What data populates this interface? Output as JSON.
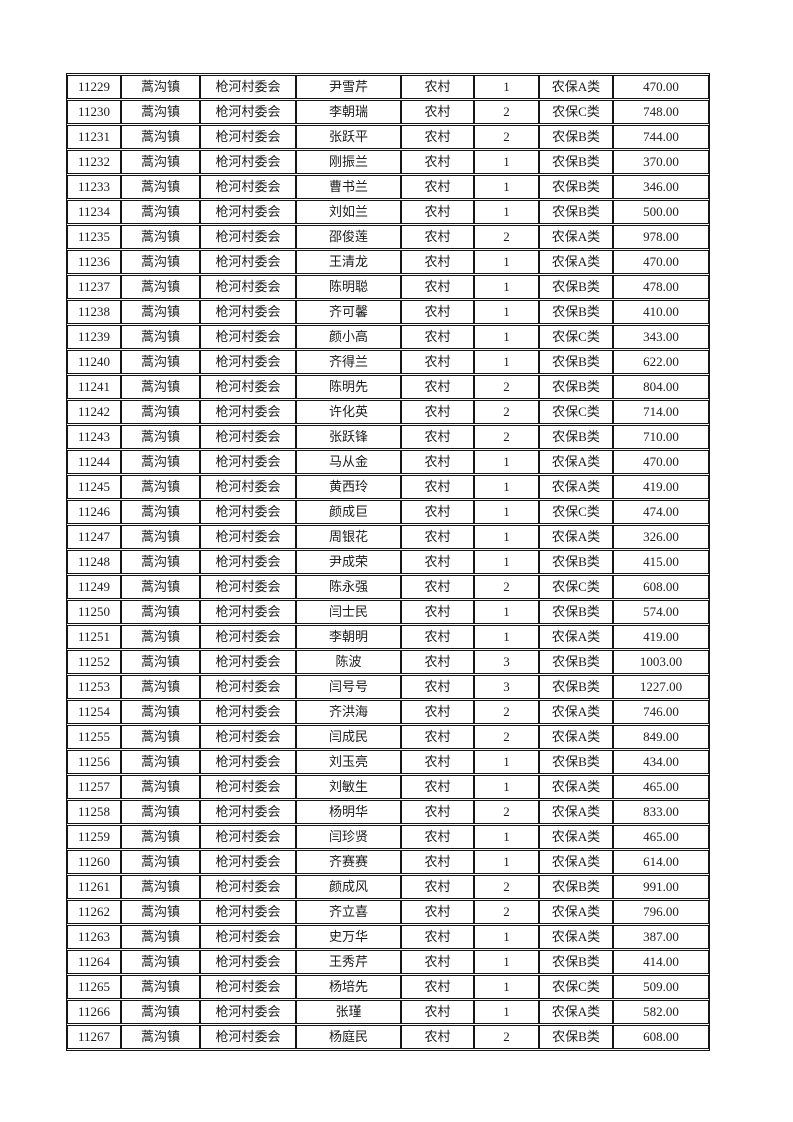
{
  "document": {
    "styles": {
      "page_background": "#ffffff",
      "border_color": "#161616",
      "text_color": "#1c1c1c"
    },
    "table": {
      "rows": [
        [
          "11229",
          "蒿沟镇",
          "枪河村委会",
          "尹雪芹",
          "农村",
          "1",
          "农保A类",
          "470.00"
        ],
        [
          "11230",
          "蒿沟镇",
          "枪河村委会",
          "李朝瑞",
          "农村",
          "2",
          "农保C类",
          "748.00"
        ],
        [
          "11231",
          "蒿沟镇",
          "枪河村委会",
          "张跃平",
          "农村",
          "2",
          "农保B类",
          "744.00"
        ],
        [
          "11232",
          "蒿沟镇",
          "枪河村委会",
          "刚振兰",
          "农村",
          "1",
          "农保B类",
          "370.00"
        ],
        [
          "11233",
          "蒿沟镇",
          "枪河村委会",
          "曹书兰",
          "农村",
          "1",
          "农保B类",
          "346.00"
        ],
        [
          "11234",
          "蒿沟镇",
          "枪河村委会",
          "刘如兰",
          "农村",
          "1",
          "农保B类",
          "500.00"
        ],
        [
          "11235",
          "蒿沟镇",
          "枪河村委会",
          "邵俊莲",
          "农村",
          "2",
          "农保A类",
          "978.00"
        ],
        [
          "11236",
          "蒿沟镇",
          "枪河村委会",
          "王清龙",
          "农村",
          "1",
          "农保A类",
          "470.00"
        ],
        [
          "11237",
          "蒿沟镇",
          "枪河村委会",
          "陈明聪",
          "农村",
          "1",
          "农保B类",
          "478.00"
        ],
        [
          "11238",
          "蒿沟镇",
          "枪河村委会",
          "齐可馨",
          "农村",
          "1",
          "农保B类",
          "410.00"
        ],
        [
          "11239",
          "蒿沟镇",
          "枪河村委会",
          "颜小高",
          "农村",
          "1",
          "农保C类",
          "343.00"
        ],
        [
          "11240",
          "蒿沟镇",
          "枪河村委会",
          "齐得兰",
          "农村",
          "1",
          "农保B类",
          "622.00"
        ],
        [
          "11241",
          "蒿沟镇",
          "枪河村委会",
          "陈明先",
          "农村",
          "2",
          "农保B类",
          "804.00"
        ],
        [
          "11242",
          "蒿沟镇",
          "枪河村委会",
          "许化英",
          "农村",
          "2",
          "农保C类",
          "714.00"
        ],
        [
          "11243",
          "蒿沟镇",
          "枪河村委会",
          "张跃锋",
          "农村",
          "2",
          "农保B类",
          "710.00"
        ],
        [
          "11244",
          "蒿沟镇",
          "枪河村委会",
          "马从金",
          "农村",
          "1",
          "农保A类",
          "470.00"
        ],
        [
          "11245",
          "蒿沟镇",
          "枪河村委会",
          "黄西玲",
          "农村",
          "1",
          "农保A类",
          "419.00"
        ],
        [
          "11246",
          "蒿沟镇",
          "枪河村委会",
          "颜成巨",
          "农村",
          "1",
          "农保C类",
          "474.00"
        ],
        [
          "11247",
          "蒿沟镇",
          "枪河村委会",
          "周银花",
          "农村",
          "1",
          "农保A类",
          "326.00"
        ],
        [
          "11248",
          "蒿沟镇",
          "枪河村委会",
          "尹成荣",
          "农村",
          "1",
          "农保B类",
          "415.00"
        ],
        [
          "11249",
          "蒿沟镇",
          "枪河村委会",
          "陈永强",
          "农村",
          "2",
          "农保C类",
          "608.00"
        ],
        [
          "11250",
          "蒿沟镇",
          "枪河村委会",
          "闫士民",
          "农村",
          "1",
          "农保B类",
          "574.00"
        ],
        [
          "11251",
          "蒿沟镇",
          "枪河村委会",
          "李朝明",
          "农村",
          "1",
          "农保A类",
          "419.00"
        ],
        [
          "11252",
          "蒿沟镇",
          "枪河村委会",
          "陈波",
          "农村",
          "3",
          "农保B类",
          "1003.00"
        ],
        [
          "11253",
          "蒿沟镇",
          "枪河村委会",
          "闫号号",
          "农村",
          "3",
          "农保B类",
          "1227.00"
        ],
        [
          "11254",
          "蒿沟镇",
          "枪河村委会",
          "齐洪海",
          "农村",
          "2",
          "农保A类",
          "746.00"
        ],
        [
          "11255",
          "蒿沟镇",
          "枪河村委会",
          "闫成民",
          "农村",
          "2",
          "农保A类",
          "849.00"
        ],
        [
          "11256",
          "蒿沟镇",
          "枪河村委会",
          "刘玉亮",
          "农村",
          "1",
          "农保B类",
          "434.00"
        ],
        [
          "11257",
          "蒿沟镇",
          "枪河村委会",
          "刘敏生",
          "农村",
          "1",
          "农保A类",
          "465.00"
        ],
        [
          "11258",
          "蒿沟镇",
          "枪河村委会",
          "杨明华",
          "农村",
          "2",
          "农保A类",
          "833.00"
        ],
        [
          "11259",
          "蒿沟镇",
          "枪河村委会",
          "闫珍贤",
          "农村",
          "1",
          "农保A类",
          "465.00"
        ],
        [
          "11260",
          "蒿沟镇",
          "枪河村委会",
          "齐赛赛",
          "农村",
          "1",
          "农保A类",
          "614.00"
        ],
        [
          "11261",
          "蒿沟镇",
          "枪河村委会",
          "颜成风",
          "农村",
          "2",
          "农保B类",
          "991.00"
        ],
        [
          "11262",
          "蒿沟镇",
          "枪河村委会",
          "齐立喜",
          "农村",
          "2",
          "农保A类",
          "796.00"
        ],
        [
          "11263",
          "蒿沟镇",
          "枪河村委会",
          "史万华",
          "农村",
          "1",
          "农保A类",
          "387.00"
        ],
        [
          "11264",
          "蒿沟镇",
          "枪河村委会",
          "王秀芹",
          "农村",
          "1",
          "农保B类",
          "414.00"
        ],
        [
          "11265",
          "蒿沟镇",
          "枪河村委会",
          "杨培先",
          "农村",
          "1",
          "农保C类",
          "509.00"
        ],
        [
          "11266",
          "蒿沟镇",
          "枪河村委会",
          "张瑾",
          "农村",
          "1",
          "农保A类",
          "582.00"
        ],
        [
          "11267",
          "蒿沟镇",
          "枪河村委会",
          "杨庭民",
          "农村",
          "2",
          "农保B类",
          "608.00"
        ]
      ]
    }
  }
}
